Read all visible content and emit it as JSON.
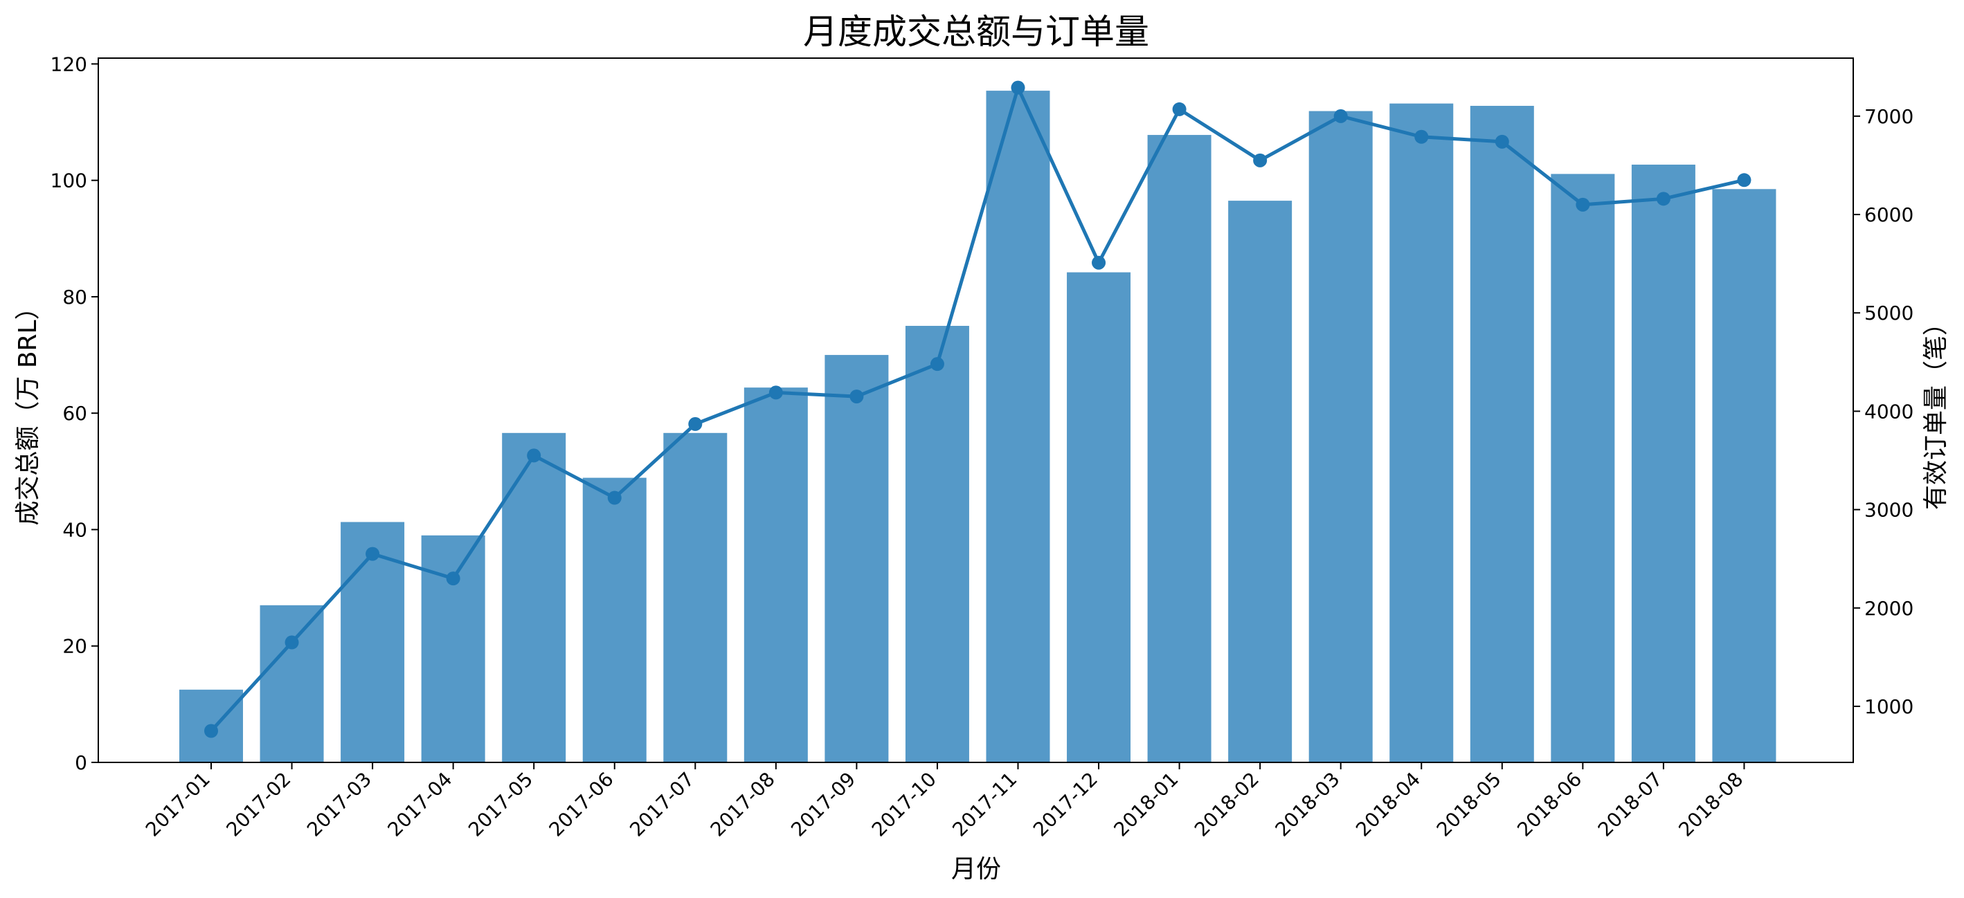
{
  "chart_data": {
    "type": "bar",
    "title": "月度成交总额与订单量",
    "xlabel": "月份",
    "ylabel": "成交总额（万 BRL）",
    "y2label": "有效订单量（笔）",
    "categories": [
      "2017-01",
      "2017-02",
      "2017-03",
      "2017-04",
      "2017-05",
      "2017-06",
      "2017-07",
      "2017-08",
      "2017-09",
      "2017-10",
      "2017-11",
      "2017-12",
      "2018-01",
      "2018-02",
      "2018-03",
      "2018-04",
      "2018-05",
      "2018-06",
      "2018-07",
      "2018-08"
    ],
    "series": [
      {
        "type": "bar",
        "axis": "left",
        "color": "#5599C8",
        "values": [
          12.5,
          27.0,
          41.3,
          39.0,
          56.6,
          48.9,
          56.6,
          64.4,
          70.0,
          75.0,
          115.4,
          84.2,
          107.8,
          96.5,
          111.9,
          113.2,
          112.8,
          101.1,
          102.7,
          98.5
        ]
      },
      {
        "type": "line",
        "axis": "right",
        "color": "#1F77B4",
        "values": [
          750,
          1650,
          2550,
          2300,
          3550,
          3120,
          3870,
          4190,
          4150,
          4480,
          7290,
          5510,
          7070,
          6550,
          7000,
          6790,
          6740,
          6100,
          6160,
          6350
        ]
      }
    ],
    "ylim": [
      0,
      121
    ],
    "y2lim": [
      430,
      7590
    ],
    "yticks": [
      0,
      20,
      40,
      60,
      80,
      100,
      120
    ],
    "y2ticks": [
      1000,
      2000,
      3000,
      4000,
      5000,
      6000,
      7000
    ],
    "grid": false,
    "legend": "none"
  }
}
